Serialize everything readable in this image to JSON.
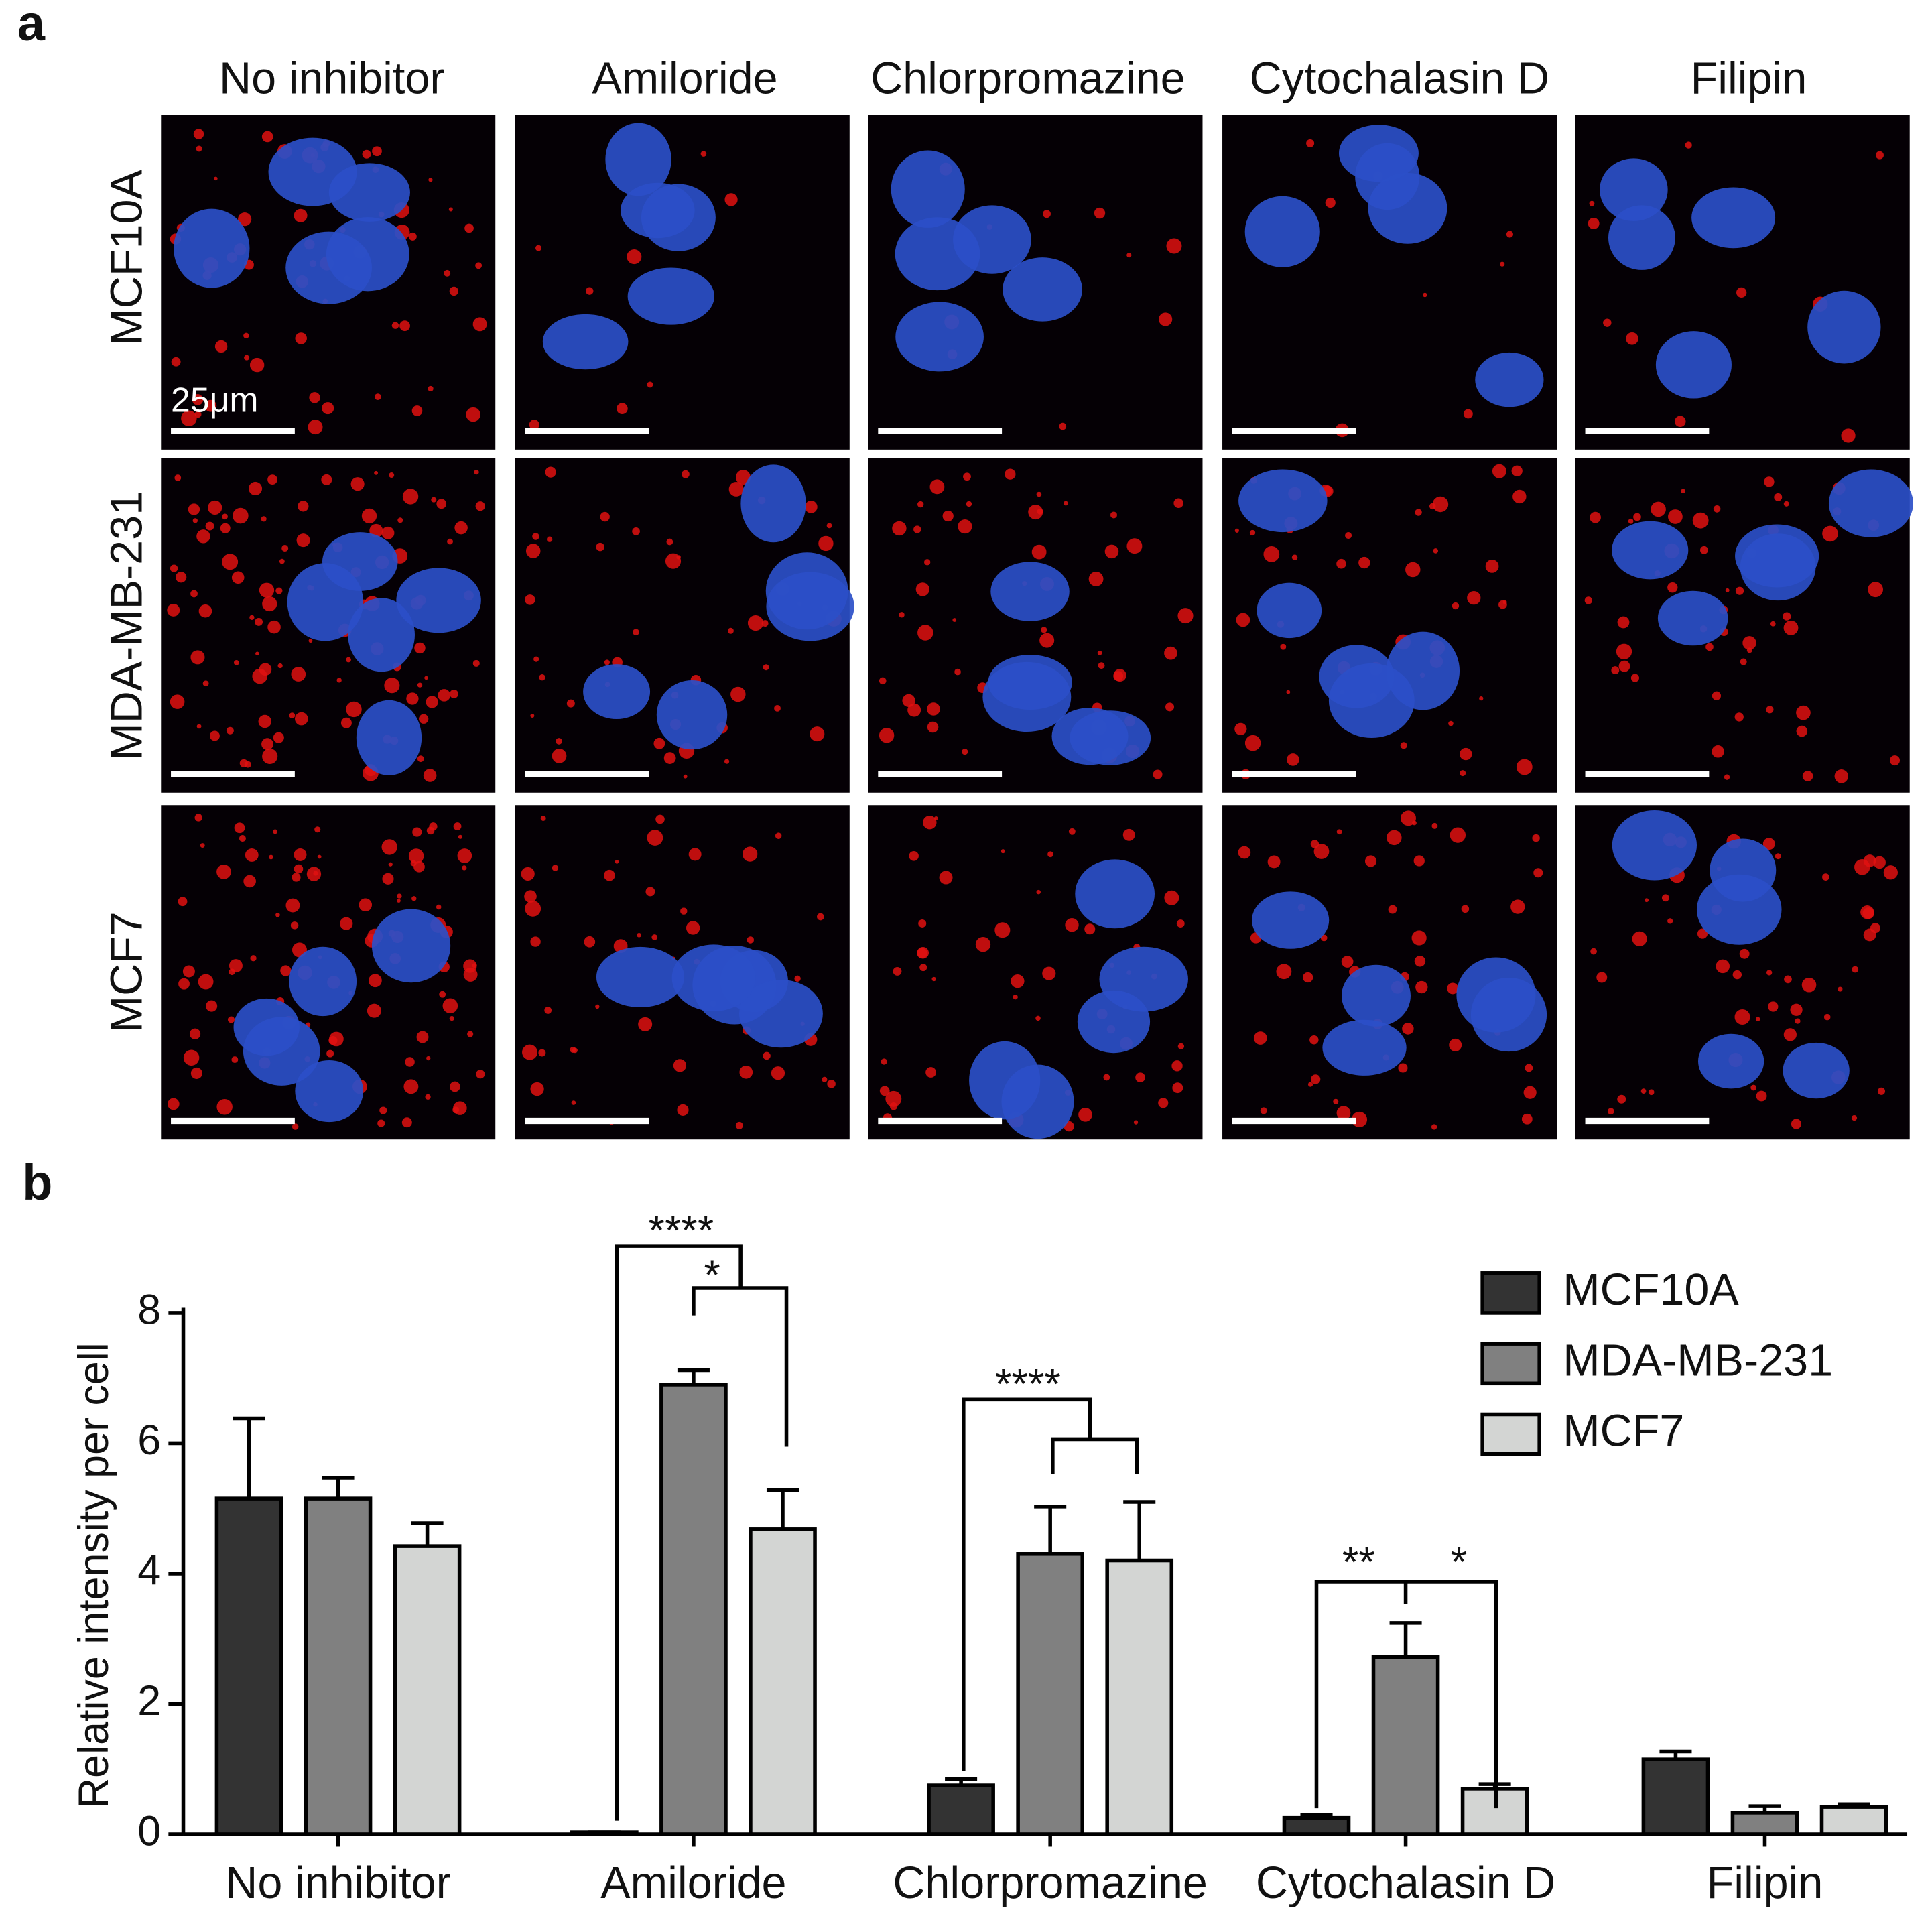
{
  "panel_a": {
    "label": "a",
    "columns": [
      "No inhibitor",
      "Amiloride",
      "Chlorpromazine",
      "Cytochalasin D",
      "Filipin"
    ],
    "rows": [
      "MCF10A",
      "MDA-MB-231",
      "MCF7"
    ],
    "scale_bar": "25μm"
  },
  "chart_data": {
    "type": "bar",
    "panel_label": "b",
    "y_label": "Relative intensity per cell",
    "categories": [
      "No inhibitor",
      "Amiloride",
      "Chlorpromazine",
      "Cytochalasin D",
      "Filipin"
    ],
    "series": [
      {
        "name": "MCF10A",
        "color": "#333333",
        "values": [
          5.15,
          0.03,
          0.75,
          0.25,
          1.15
        ],
        "errors": [
          1.23,
          0,
          0.1,
          0.05,
          0.12
        ]
      },
      {
        "name": "MDA-MB-231",
        "color": "#808080",
        "values": [
          5.15,
          6.9,
          4.3,
          2.72,
          0.33
        ],
        "errors": [
          0.32,
          0.22,
          0.73,
          0.52,
          0.1
        ]
      },
      {
        "name": "MCF7",
        "color": "#d3d5d3",
        "values": [
          4.42,
          4.68,
          4.2,
          0.7,
          0.42
        ],
        "errors": [
          0.35,
          0.6,
          0.9,
          0.07,
          0.04
        ]
      }
    ],
    "ylim": [
      0,
      8
    ],
    "yticks": [
      0,
      2,
      4,
      6,
      8
    ],
    "annotations": [
      {
        "text": "****"
      },
      {
        "text": "*"
      },
      {
        "text": "****"
      },
      {
        "text": "**"
      },
      {
        "text": "*"
      }
    ],
    "legend": "top-right"
  }
}
